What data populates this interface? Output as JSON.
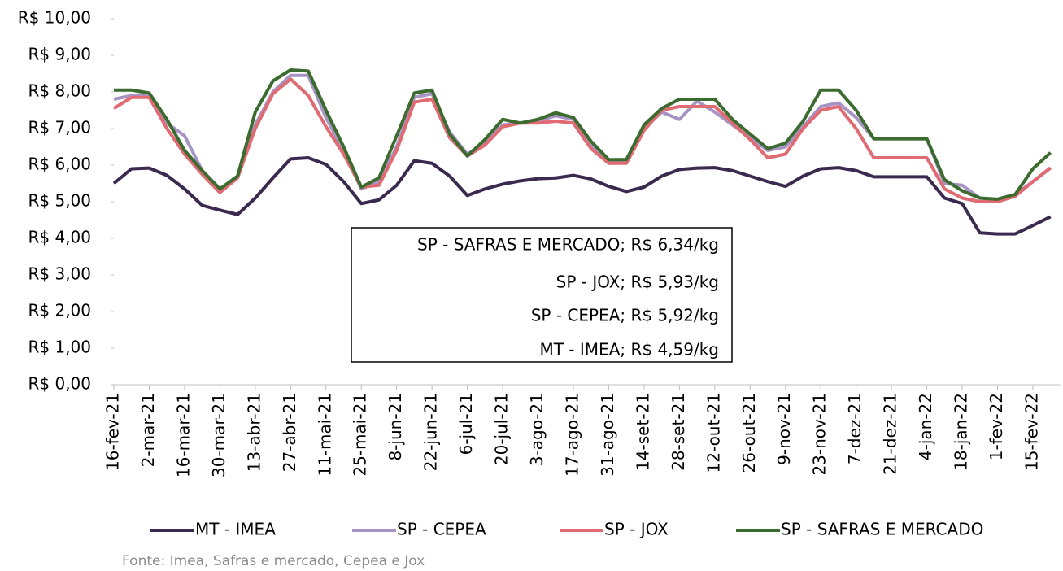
{
  "chart_data": {
    "type": "line",
    "categories": [
      "16-fev-21",
      null,
      "2-mar-21",
      null,
      "16-mar-21",
      null,
      "30-mar-21",
      null,
      "13-abr-21",
      null,
      "27-abr-21",
      null,
      "11-mai-21",
      null,
      "25-mai-21",
      null,
      "8-jun-21",
      null,
      "22-jun-21",
      null,
      "6-jul-21",
      null,
      "20-jul-21",
      null,
      "3-ago-21",
      null,
      "17-ago-21",
      null,
      "31-ago-21",
      null,
      "14-set-21",
      null,
      "28-set-21",
      null,
      "12-out-21",
      null,
      "26-out-21",
      null,
      "9-nov-21",
      null,
      "23-nov-21",
      null,
      "7-dez-21",
      null,
      "21-dez-21",
      null,
      "4-jan-22",
      null,
      "18-jan-22",
      null,
      "1-fev-22",
      null,
      "15-fev-22",
      null
    ],
    "series": [
      {
        "name": "MT - IMEA",
        "color": "#3b2a4f",
        "values": [
          5.5,
          5.9,
          5.92,
          5.72,
          5.35,
          4.9,
          4.77,
          4.65,
          5.1,
          5.65,
          6.17,
          6.2,
          6.02,
          5.55,
          4.95,
          5.05,
          5.45,
          6.12,
          6.05,
          5.7,
          5.17,
          5.35,
          5.48,
          5.57,
          5.63,
          5.65,
          5.72,
          5.62,
          5.42,
          5.28,
          5.4,
          5.7,
          5.88,
          5.92,
          5.93,
          5.85,
          5.7,
          5.55,
          5.42,
          5.7,
          5.9,
          5.93,
          5.85,
          5.68,
          5.68,
          5.68,
          5.68,
          5.1,
          4.95,
          4.15,
          4.12,
          4.12,
          4.35,
          4.59
        ]
      },
      {
        "name": "SP - CEPEA",
        "color": "#a794c4",
        "values": [
          7.8,
          7.9,
          7.9,
          7.15,
          6.8,
          5.85,
          5.3,
          5.7,
          7.1,
          8.0,
          8.45,
          8.45,
          7.3,
          6.4,
          5.35,
          5.55,
          6.5,
          7.85,
          7.95,
          6.9,
          6.3,
          6.6,
          7.1,
          7.15,
          7.2,
          7.35,
          7.25,
          6.55,
          6.1,
          6.1,
          7.0,
          7.45,
          7.25,
          7.75,
          7.45,
          7.1,
          6.75,
          6.4,
          6.5,
          7.05,
          7.6,
          7.7,
          7.3,
          6.72,
          6.72,
          6.72,
          6.72,
          5.5,
          5.45,
          5.1,
          5.05,
          5.2,
          5.55,
          5.92
        ]
      },
      {
        "name": "SP - JOX",
        "color": "#e06b73",
        "values": [
          7.55,
          7.85,
          7.85,
          7.0,
          6.3,
          5.75,
          5.25,
          5.65,
          7.0,
          7.95,
          8.35,
          7.9,
          7.05,
          6.3,
          5.4,
          5.45,
          6.4,
          7.72,
          7.8,
          6.75,
          6.25,
          6.55,
          7.05,
          7.15,
          7.15,
          7.2,
          7.15,
          6.45,
          6.05,
          6.05,
          6.95,
          7.5,
          7.6,
          7.6,
          7.6,
          7.15,
          6.7,
          6.2,
          6.3,
          7.0,
          7.5,
          7.6,
          7.0,
          6.2,
          6.2,
          6.2,
          6.2,
          5.35,
          5.1,
          5.0,
          5.0,
          5.15,
          5.55,
          5.93
        ]
      },
      {
        "name": "SP - SAFRAS E MERCADO",
        "color": "#3c6b2f",
        "values": [
          8.05,
          8.05,
          7.97,
          7.25,
          6.4,
          5.85,
          5.35,
          5.7,
          7.45,
          8.3,
          8.6,
          8.57,
          7.5,
          6.5,
          5.4,
          5.65,
          6.8,
          7.97,
          8.05,
          6.85,
          6.25,
          6.7,
          7.25,
          7.15,
          7.25,
          7.43,
          7.3,
          6.65,
          6.15,
          6.15,
          7.1,
          7.55,
          7.8,
          7.8,
          7.8,
          7.25,
          6.85,
          6.45,
          6.6,
          7.2,
          8.05,
          8.05,
          7.5,
          6.72,
          6.72,
          6.72,
          6.72,
          5.6,
          5.3,
          5.1,
          5.07,
          5.2,
          5.9,
          6.34
        ]
      }
    ],
    "ylim": [
      0,
      10
    ],
    "yticks": [
      {
        "value": 0,
        "label": "R$ 0,00"
      },
      {
        "value": 1,
        "label": "R$ 1,00"
      },
      {
        "value": 2,
        "label": "R$ 2,00"
      },
      {
        "value": 3,
        "label": "R$ 3,00"
      },
      {
        "value": 4,
        "label": "R$ 4,00"
      },
      {
        "value": 5,
        "label": "R$ 5,00"
      },
      {
        "value": 6,
        "label": "R$ 6,00"
      },
      {
        "value": 7,
        "label": "R$ 7,00"
      },
      {
        "value": 8,
        "label": "R$ 8,00"
      },
      {
        "value": 9,
        "label": "R$ 9,00"
      },
      {
        "value": 10,
        "label": "R$ 10,00"
      }
    ],
    "annotations": [
      "SP - SAFRAS E MERCADO; R$ 6,34/kg",
      "SP - JOX; R$ 5,93/kg",
      "SP - CEPEA; R$ 5,92/kg",
      "MT - IMEA; R$ 4,59/kg"
    ],
    "source": "Fonte: Imea, Safras e mercado, Cepea e Jox"
  }
}
